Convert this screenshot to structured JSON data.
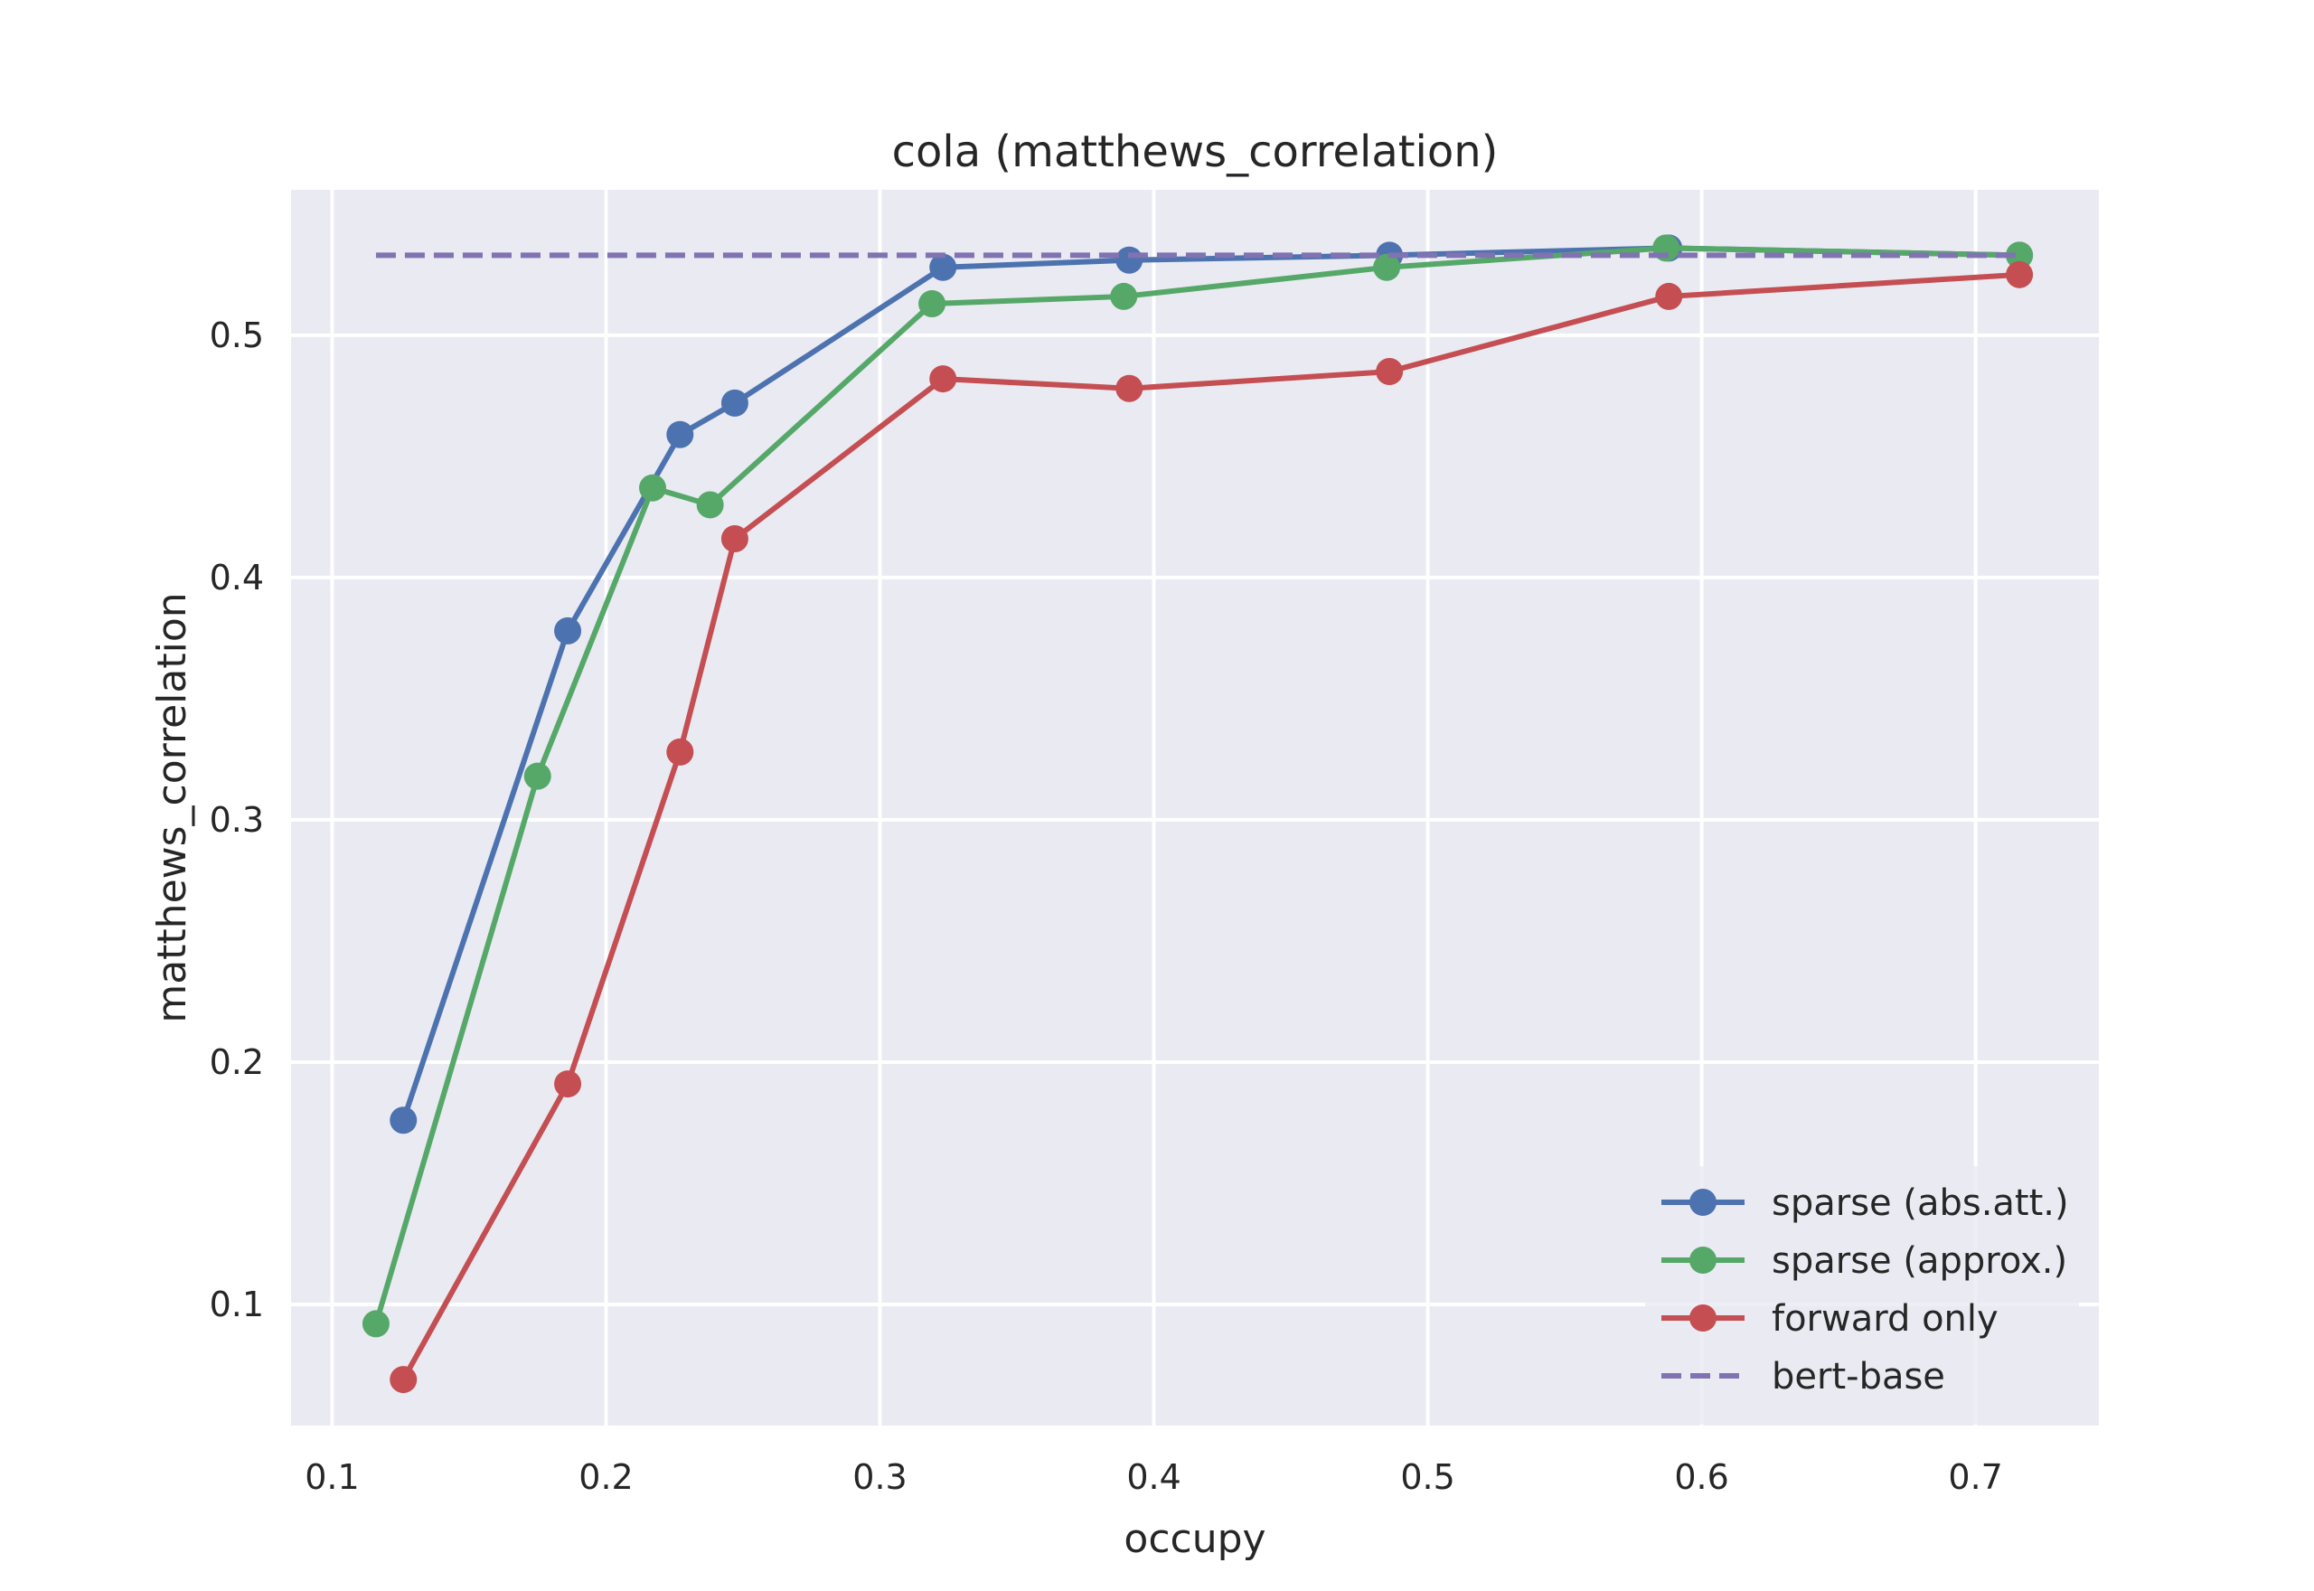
{
  "chart_data": {
    "type": "line",
    "title": "cola (matthews_correlation)",
    "xlabel": "occupy",
    "ylabel": "matthews_correlation",
    "xlim": [
      0.085,
      0.745
    ],
    "ylim": [
      0.05,
      0.56
    ],
    "xticks": [
      0.1,
      0.2,
      0.3,
      0.4,
      0.5,
      0.6,
      0.7
    ],
    "yticks": [
      0.1,
      0.2,
      0.3,
      0.4,
      0.5
    ],
    "xtick_labels": [
      "0.1",
      "0.2",
      "0.3",
      "0.4",
      "0.5",
      "0.6",
      "0.7"
    ],
    "ytick_labels": [
      "0.1",
      "0.2",
      "0.3",
      "0.4",
      "0.5"
    ],
    "grid": true,
    "legend_position": "bottom-right",
    "series": [
      {
        "name": "sparse (abs.att.)",
        "color": "#4c72b0",
        "style": "solid-marker",
        "x": [
          0.126,
          0.186,
          0.227,
          0.247,
          0.323,
          0.391,
          0.486,
          0.588,
          0.716
        ],
        "y": [
          0.176,
          0.378,
          0.459,
          0.472,
          0.528,
          0.531,
          0.533,
          0.536,
          0.533
        ]
      },
      {
        "name": "sparse (approx.)",
        "color": "#55a868",
        "style": "solid-marker",
        "x": [
          0.116,
          0.175,
          0.217,
          0.238,
          0.319,
          0.389,
          0.485,
          0.587,
          0.716
        ],
        "y": [
          0.092,
          0.318,
          0.437,
          0.43,
          0.513,
          0.516,
          0.528,
          0.536,
          0.533
        ]
      },
      {
        "name": "forward only",
        "color": "#c44e52",
        "style": "solid-marker",
        "x": [
          0.126,
          0.186,
          0.227,
          0.247,
          0.323,
          0.391,
          0.486,
          0.588,
          0.716
        ],
        "y": [
          0.069,
          0.191,
          0.328,
          0.416,
          0.482,
          0.478,
          0.485,
          0.516,
          0.525
        ]
      },
      {
        "name": "bert-base",
        "color": "#8172b2",
        "style": "dashed",
        "x": [
          0.116,
          0.716
        ],
        "y": [
          0.533,
          0.533
        ]
      }
    ]
  }
}
